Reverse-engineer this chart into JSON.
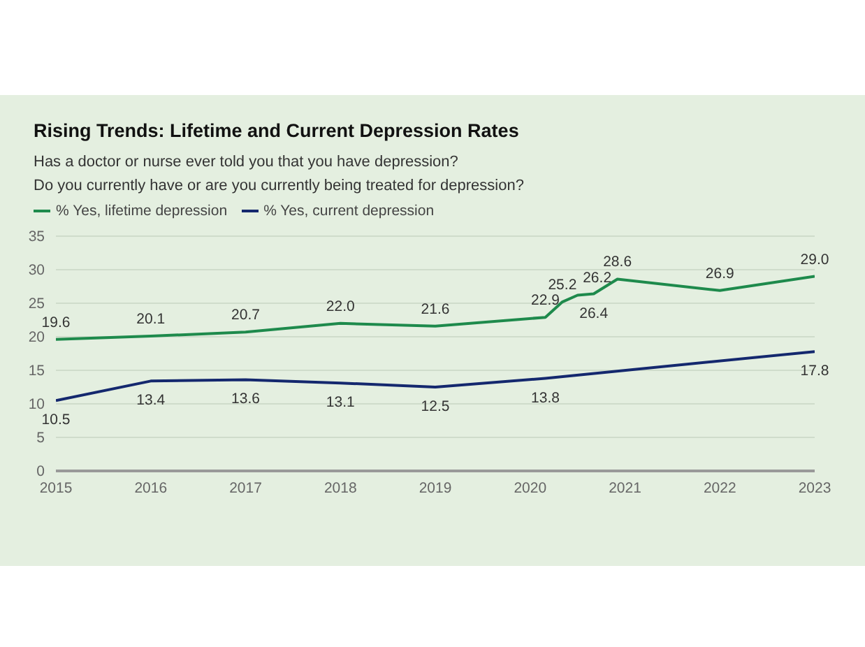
{
  "chart_data": {
    "type": "line",
    "title": "Rising Trends: Lifetime and Current Depression Rates",
    "subtitle": "Has a doctor or nurse ever told you that you have depression?\nDo you currently have or are you currently being treated for depression?",
    "series": [
      {
        "name": "% Yes, lifetime depression",
        "color": "#1e8a4c",
        "x": [
          2015,
          2016,
          2017,
          2018,
          2019,
          2020.16,
          2020.34,
          2020.5,
          2020.67,
          2020.92,
          2022,
          2023
        ],
        "values": [
          19.6,
          20.1,
          20.7,
          22.0,
          21.6,
          22.9,
          25.2,
          26.2,
          26.4,
          28.6,
          26.9,
          29.0
        ],
        "value_labels": [
          "19.6",
          "20.1",
          "20.7",
          "22.0",
          "21.6",
          "22.9",
          "25.2",
          "26.2",
          "26.4",
          "28.6",
          "26.9",
          "29.0"
        ]
      },
      {
        "name": "% Yes, current depression",
        "color": "#14286e",
        "x": [
          2015,
          2016,
          2017,
          2018,
          2019,
          2020.16,
          2023
        ],
        "values": [
          10.5,
          13.4,
          13.6,
          13.1,
          12.5,
          13.8,
          17.8
        ],
        "value_labels": [
          "10.5",
          "13.4",
          "13.6",
          "13.1",
          "12.5",
          "13.8",
          "17.8"
        ]
      }
    ],
    "xlim": [
      2015,
      2023
    ],
    "xticks": [
      2015,
      2016,
      2017,
      2018,
      2019,
      2020,
      2021,
      2022,
      2023
    ],
    "ylim": [
      0,
      35
    ],
    "yticks": [
      0,
      5,
      10,
      15,
      20,
      25,
      30,
      35
    ],
    "grid": "y",
    "legend": "top left",
    "marker": "none",
    "line_style": "solid"
  }
}
